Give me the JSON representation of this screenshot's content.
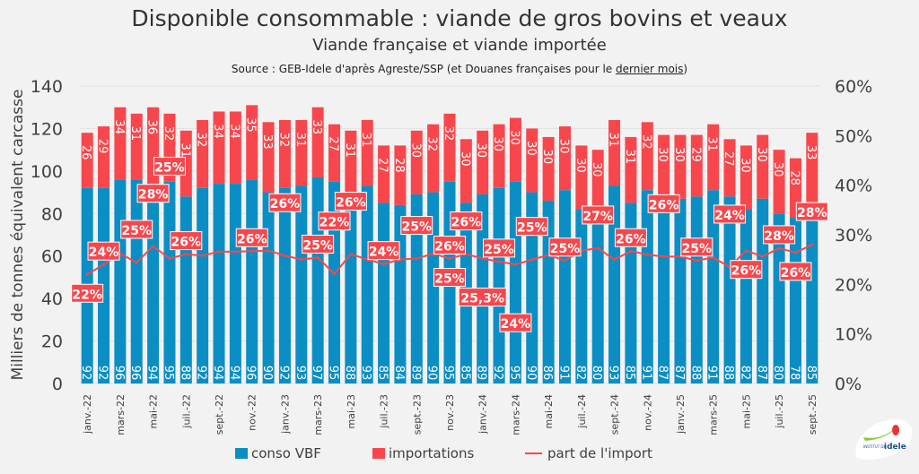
{
  "chart_data": {
    "type": "bar",
    "stacked": true,
    "title": "Disponible consommable : viande de gros bovins et veaux",
    "subtitle": "Viande française et viande importée",
    "source_prefix": "Source : GEB-Idele d'après Agreste/SSP (et Douanes françaises pour le ",
    "source_link": "dernier mois",
    "source_suffix": ")",
    "ylabel": "Milliers de tonnes équivalent carcasse",
    "ylim": [
      0,
      140
    ],
    "y_ticks": [
      "0",
      "20",
      "40",
      "60",
      "80",
      "100",
      "120",
      "140"
    ],
    "y2lim": [
      0,
      60
    ],
    "y2_ticks": [
      "0%",
      "10%",
      "20%",
      "30%",
      "40%",
      "50%",
      "60%"
    ],
    "grid": true,
    "legend_position": "bottom",
    "x_tick_labels": [
      "janv.-22",
      "mars-22",
      "mai-22",
      "juil.-22",
      "sept.-22",
      "nov.-22",
      "janv.-23",
      "mars-23",
      "mai-23",
      "juil.-23",
      "sept.-23",
      "nov.-23",
      "janv.-24",
      "mars-24",
      "mai-24",
      "juil.-24",
      "sept.-24",
      "nov.-24",
      "janv.-25",
      "mars-25",
      "mai-25",
      "juil.-25",
      "sept.-25"
    ],
    "series": [
      {
        "name": "conso VBF",
        "color": "#0b8ec3",
        "values": [
          92,
          92,
          96,
          96,
          94,
          95,
          88,
          92,
          94,
          94,
          96,
          90,
          92,
          93,
          97,
          95,
          88,
          93,
          85,
          84,
          89,
          90,
          95,
          85,
          89,
          92,
          95,
          90,
          86,
          91,
          82,
          80,
          93,
          85,
          91,
          87,
          87,
          88,
          91,
          88,
          82,
          87,
          80,
          78,
          85
        ]
      },
      {
        "name": "importations",
        "color": "#f8474c",
        "values": [
          26,
          29,
          34,
          31,
          36,
          32,
          31,
          32,
          34,
          34,
          35,
          33,
          32,
          31,
          33,
          27,
          31,
          31,
          27,
          28,
          30,
          32,
          32,
          30,
          30,
          30,
          30,
          30,
          30,
          30,
          30,
          30,
          31,
          31,
          32,
          30,
          30,
          29,
          31,
          27,
          30,
          30,
          30,
          28,
          33
        ]
      },
      {
        "name": "part de l'import",
        "type": "line",
        "axis": "right",
        "color": "#f8474c",
        "values": [
          22.0,
          24.0,
          26.2,
          24.4,
          27.7,
          25.2,
          26.1,
          25.8,
          26.6,
          26.6,
          26.7,
          26.8,
          25.8,
          25.0,
          25.4,
          22.1,
          26.1,
          25.0,
          24.1,
          25.0,
          25.2,
          26.2,
          25.2,
          26.1,
          25.2,
          24.6,
          24.0,
          25.0,
          25.9,
          24.8,
          26.8,
          27.3,
          25.0,
          26.7,
          26.0,
          25.6,
          25.6,
          24.8,
          25.4,
          23.5,
          26.8,
          25.6,
          27.3,
          26.4,
          28.0
        ]
      }
    ],
    "line_labels": [
      {
        "index": 0,
        "text": "22%",
        "side": "below"
      },
      {
        "index": 1,
        "text": "24%",
        "side": "above"
      },
      {
        "index": 3,
        "text": "25%",
        "side": "above"
      },
      {
        "index": 4,
        "text": "28%",
        "side": "above"
      },
      {
        "index": 5,
        "text": "25%",
        "side": "above"
      },
      {
        "index": 6,
        "text": "26%",
        "side": "above"
      },
      {
        "index": 10,
        "text": "26%",
        "side": "above"
      },
      {
        "index": 12,
        "text": "26%",
        "side": "above"
      },
      {
        "index": 14,
        "text": "25%",
        "side": "above"
      },
      {
        "index": 15,
        "text": "22%",
        "side": "above"
      },
      {
        "index": 16,
        "text": "26%",
        "side": "above"
      },
      {
        "index": 18,
        "text": "24%",
        "side": "above"
      },
      {
        "index": 20,
        "text": "25%",
        "side": "above"
      },
      {
        "index": 22,
        "text": "26%",
        "side": "above"
      },
      {
        "index": 23,
        "text": "26%",
        "side": "above"
      },
      {
        "index": 22,
        "text": "25%",
        "side": "below"
      },
      {
        "index": 24,
        "text": "25,3%",
        "side": "below"
      },
      {
        "index": 25,
        "text": "25%",
        "side": "above"
      },
      {
        "index": 26,
        "text": "24%",
        "side": "below"
      },
      {
        "index": 27,
        "text": "25%",
        "side": "above"
      },
      {
        "index": 29,
        "text": "25%",
        "side": "above"
      },
      {
        "index": 31,
        "text": "27%",
        "side": "above"
      },
      {
        "index": 33,
        "text": "26%",
        "side": "above"
      },
      {
        "index": 35,
        "text": "26%",
        "side": "above"
      },
      {
        "index": 37,
        "text": "25%",
        "side": "above"
      },
      {
        "index": 39,
        "text": "24%",
        "side": "above"
      },
      {
        "index": 40,
        "text": "26%",
        "side": "below"
      },
      {
        "index": 42,
        "text": "28%",
        "side": "above"
      },
      {
        "index": 43,
        "text": "26%",
        "side": "below"
      },
      {
        "index": 44,
        "text": "28%",
        "side": "above"
      }
    ]
  },
  "logo": {
    "text": "idele",
    "subtext": "INSTITUT DE L'ÉLEVAGE"
  }
}
